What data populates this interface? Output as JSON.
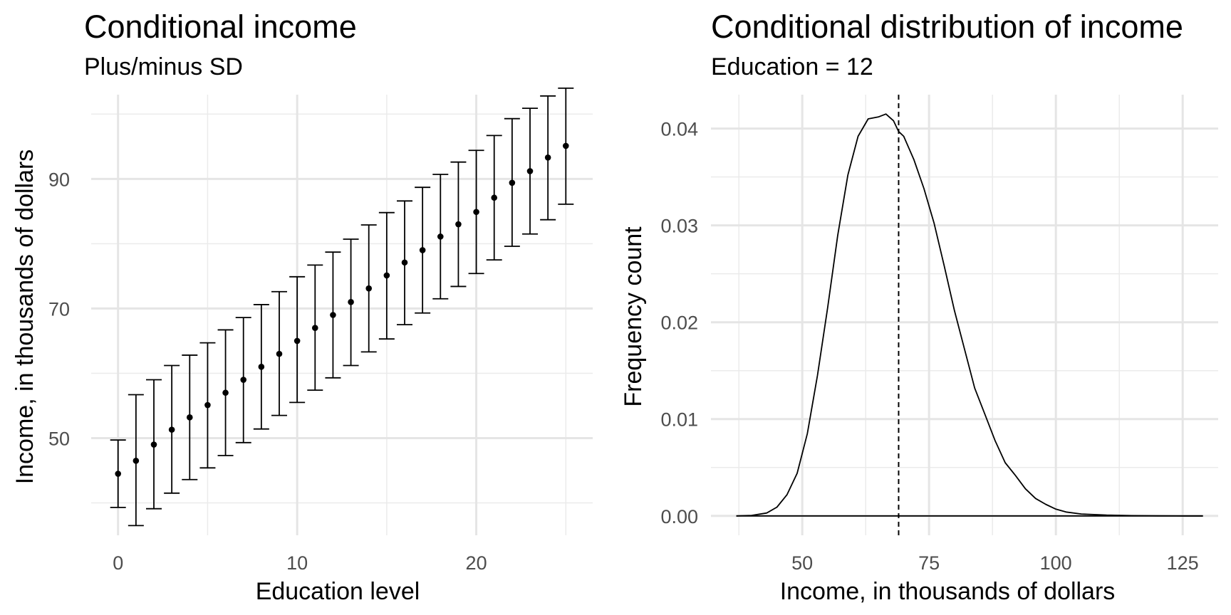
{
  "chart_data": [
    {
      "type": "errorbar",
      "title": "Conditional income",
      "subtitle": "Plus/minus SD",
      "xlabel": "Education level",
      "ylabel": "Income, in thousands of dollars",
      "xlim": [
        -1.5,
        26.5
      ],
      "ylim": [
        35,
        103
      ],
      "x_ticks": [
        0,
        10,
        20
      ],
      "x_minor_ticks": [
        5,
        15,
        25
      ],
      "y_ticks": [
        50,
        70,
        90
      ],
      "y_minor_ticks": [
        40,
        60,
        80,
        100
      ],
      "grid": true,
      "x": [
        0,
        1,
        2,
        3,
        4,
        5,
        6,
        7,
        8,
        9,
        10,
        11,
        12,
        13,
        14,
        15,
        16,
        17,
        18,
        19,
        20,
        21,
        22,
        23,
        24,
        25
      ],
      "mean": [
        44.5,
        46.5,
        49,
        51.3,
        53.2,
        55.1,
        57,
        59,
        61,
        63,
        65,
        67,
        69,
        71,
        73.1,
        75.1,
        77.1,
        79,
        81.1,
        83,
        84.9,
        87.1,
        89.4,
        91.2,
        93.3,
        95.1
      ],
      "lower": [
        39.3,
        36.5,
        39.1,
        41.5,
        43.6,
        45.4,
        47.3,
        49.3,
        51.4,
        53.5,
        55.5,
        57.4,
        59.3,
        61.2,
        63.3,
        65.3,
        67.5,
        69.3,
        71.5,
        73.4,
        75.4,
        77.5,
        79.6,
        81.5,
        83.7,
        86.1
      ],
      "upper": [
        49.7,
        56.7,
        59,
        61.2,
        62.8,
        64.7,
        66.7,
        68.6,
        70.6,
        72.6,
        74.9,
        76.7,
        78.7,
        80.7,
        82.9,
        84.8,
        86.6,
        88.7,
        90.7,
        92.6,
        94.4,
        96.7,
        99.3,
        100.9,
        102.8,
        104
      ]
    },
    {
      "type": "line",
      "title": "Conditional distribution of income",
      "subtitle": "Education = 12",
      "xlabel": "Income, in thousands of dollars",
      "ylabel": "Frequency count",
      "xlim": [
        32,
        132
      ],
      "ylim": [
        -0.002,
        0.0435
      ],
      "x_ticks": [
        50,
        75,
        100,
        125
      ],
      "x_minor_ticks": [
        37.5,
        62.5,
        87.5,
        112.5
      ],
      "y_ticks": [
        0.0,
        0.01,
        0.02,
        0.03,
        0.04
      ],
      "y_tick_labels": [
        "0.00",
        "0.01",
        "0.02",
        "0.03",
        "0.04"
      ],
      "y_minor_ticks": [
        0.005,
        0.015,
        0.025,
        0.035
      ],
      "grid": true,
      "mean_line_x": 69,
      "baseline": [
        37,
        129
      ],
      "x": [
        37,
        40,
        43,
        45,
        47,
        49,
        51,
        53,
        55,
        57,
        59,
        61,
        63,
        65,
        66.5,
        68,
        69,
        70,
        71,
        72,
        74,
        76,
        78,
        80,
        82,
        84,
        86,
        88,
        90,
        92,
        94,
        96,
        98,
        100,
        102,
        105,
        110,
        115,
        120,
        125,
        129
      ],
      "y": [
        0,
        5e-05,
        0.0003,
        0.0009,
        0.0022,
        0.0044,
        0.0085,
        0.0145,
        0.0215,
        0.029,
        0.0352,
        0.0392,
        0.041,
        0.0412,
        0.0415,
        0.0408,
        0.0397,
        0.0392,
        0.038,
        0.0368,
        0.0338,
        0.0302,
        0.0258,
        0.0212,
        0.0172,
        0.0132,
        0.0105,
        0.0078,
        0.0055,
        0.0042,
        0.0028,
        0.0018,
        0.0012,
        0.0007,
        0.0004,
        0.0002,
        8e-05,
        3e-05,
        1e-05,
        0,
        0
      ]
    }
  ]
}
